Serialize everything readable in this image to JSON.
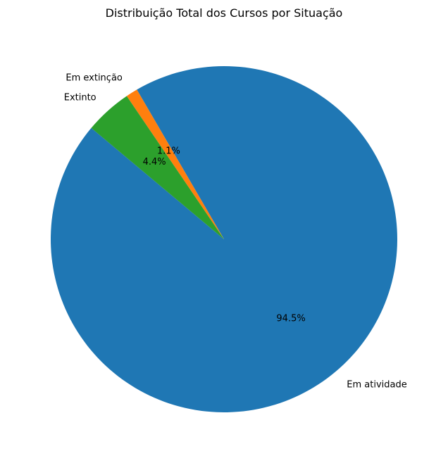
{
  "chart_data": {
    "type": "pie",
    "title": "Distribuição Total dos Cursos por Situação",
    "labels": [
      "Em atividade",
      "Em extinção",
      "Extinto"
    ],
    "values": [
      94.5,
      1.1,
      4.4
    ],
    "value_labels": [
      "94.5%",
      "1.1%",
      "4.4%"
    ],
    "colors": [
      "#1f77b4",
      "#ff7f0e",
      "#2ca02c"
    ],
    "start_angle_deg": 140,
    "legend": "none"
  }
}
